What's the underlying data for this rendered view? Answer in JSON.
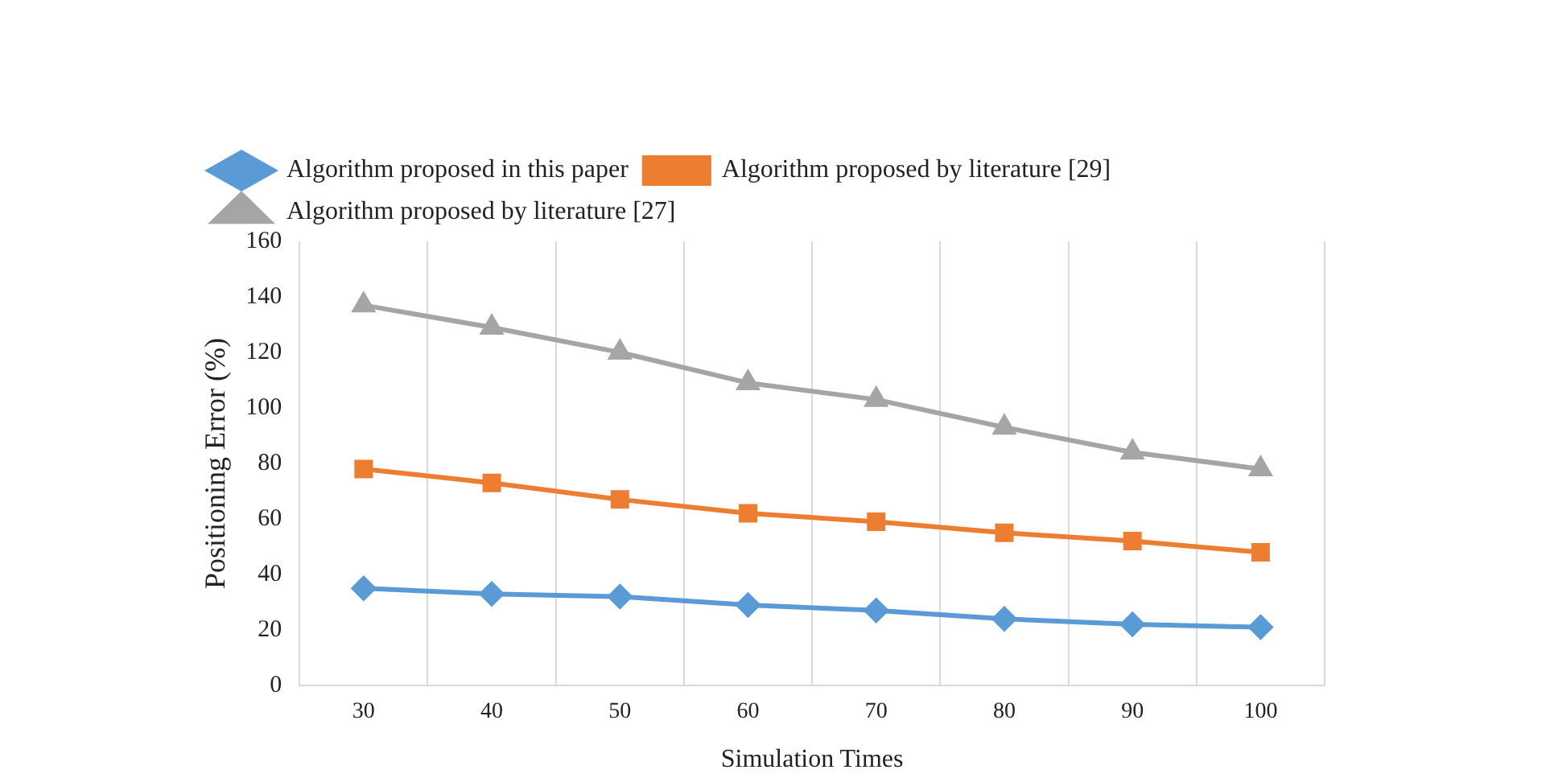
{
  "chart_data": {
    "type": "line",
    "xlabel": "Simulation Times",
    "ylabel": "Positioning Error (%)",
    "categories": [
      "30",
      "40",
      "50",
      "60",
      "70",
      "80",
      "90",
      "100"
    ],
    "series": [
      {
        "name": "Algorithm proposed in this paper",
        "color": "#5b9bd5",
        "marker": "diamond",
        "values": [
          35,
          33,
          32,
          29,
          27,
          24,
          22,
          21
        ]
      },
      {
        "name": "Algorithm proposed by literature [29]",
        "color": "#ed7d31",
        "marker": "square",
        "values": [
          78,
          73,
          67,
          62,
          59,
          55,
          52,
          48
        ]
      },
      {
        "name": "Algorithm proposed by literature [27]",
        "color": "#a5a5a5",
        "marker": "triangle",
        "values": [
          137,
          129,
          120,
          109,
          103,
          93,
          84,
          78
        ]
      }
    ],
    "ylim": [
      0,
      160
    ],
    "yticks": [
      0,
      20,
      40,
      60,
      80,
      100,
      120,
      140,
      160
    ],
    "grid": "x",
    "legend": "top"
  }
}
